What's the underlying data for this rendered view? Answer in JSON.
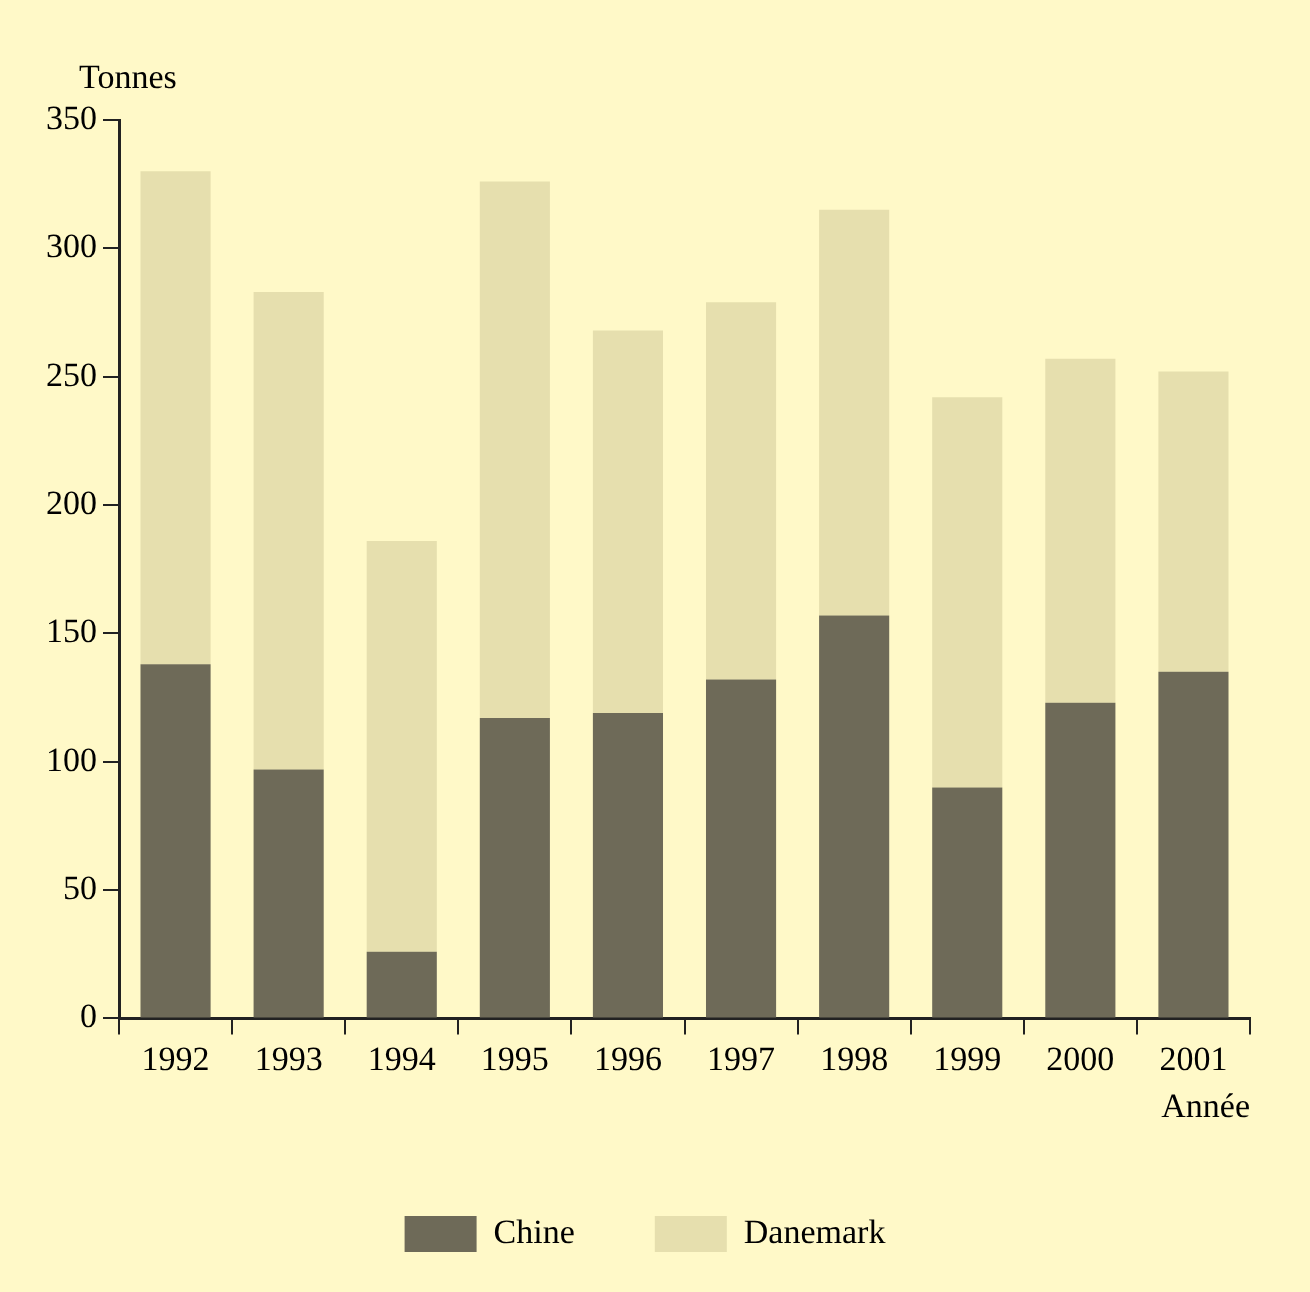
{
  "chart_data": {
    "type": "bar",
    "stacked": true,
    "xlabel": "Année",
    "ylabel": "Tonnes",
    "categories": [
      "1992",
      "1993",
      "1994",
      "1995",
      "1996",
      "1997",
      "1998",
      "1999",
      "2000",
      "2001"
    ],
    "series": [
      {
        "name": "Chine",
        "color": "#6e6a58",
        "values": [
          138,
          97,
          26,
          117,
          119,
          132,
          157,
          90,
          123,
          135
        ]
      },
      {
        "name": "Danemark",
        "color": "#e6dfae",
        "values": [
          192,
          186,
          160,
          209,
          149,
          147,
          158,
          152,
          134,
          117
        ]
      }
    ],
    "ylim": [
      0,
      350
    ],
    "yticks": [
      0,
      50,
      100,
      150,
      200,
      250,
      300,
      350
    ],
    "grid": false,
    "legend": "bottom"
  }
}
